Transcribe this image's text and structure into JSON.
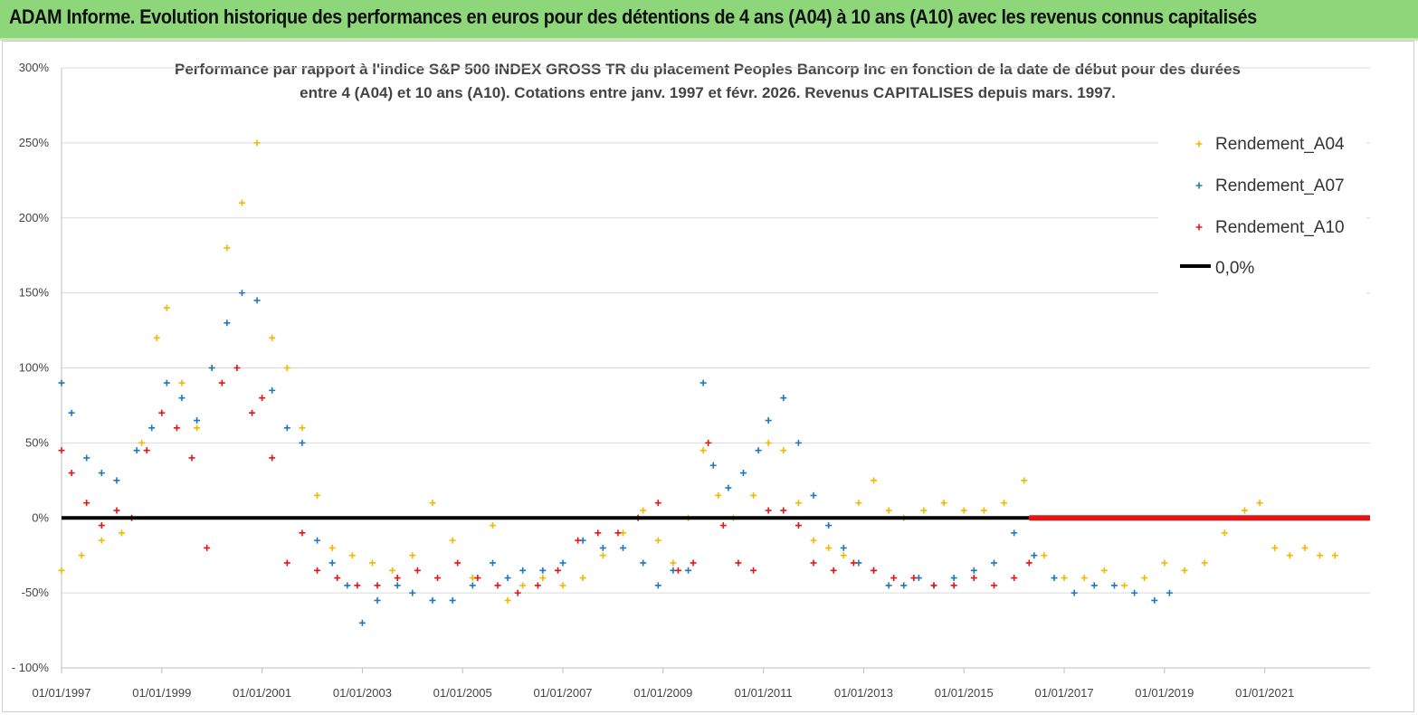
{
  "banner": {
    "title": "ADAM Informe. Evolution historique des performances en euros pour des détentions de 4 ans (A04) à 10 ans (A10) avec les revenus connus capitalisés",
    "background": "#8ed67a"
  },
  "chart_data": {
    "type": "scatter",
    "title_line1": "Performance par rapport à l'indice S&P 500 INDEX GROSS TR  du placement Peoples Bancorp Inc en fonction de la date de début pour des durées",
    "title_line2": "entre 4 (A04) et 10 ans (A10). Cotations entre janv. 1997 et févr. 2026. Revenus CAPITALISES depuis mars. 1997.",
    "x_range": [
      1997.0,
      2023.1
    ],
    "ylim": [
      -100,
      300
    ],
    "y_ticks": [
      300,
      250,
      200,
      150,
      100,
      50,
      0,
      -50,
      -100
    ],
    "y_tick_labels": [
      "300%",
      "250%",
      "200%",
      "150%",
      "100%",
      "50%",
      "0%",
      "-50%",
      "- 100%"
    ],
    "x_ticks": [
      1997,
      1999,
      2001,
      2003,
      2005,
      2007,
      2009,
      2011,
      2013,
      2015,
      2017,
      2019,
      2021
    ],
    "x_tick_labels": [
      "01/01/1997",
      "01/01/1999",
      "01/01/2001",
      "01/01/2003",
      "01/01/2005",
      "01/01/2007",
      "01/01/2009",
      "01/01/2011",
      "01/01/2013",
      "01/01/2015",
      "01/01/2017",
      "01/01/2019",
      "01/01/2021"
    ],
    "legend": [
      "Rendement_A04",
      "Rendement_A07",
      "Rendement_A10",
      "0,0%"
    ],
    "series": [
      {
        "name": "Rendement_A04",
        "color": "#f2b800",
        "x": [
          1997.0,
          1997.4,
          1997.8,
          1998.2,
          1998.6,
          1998.9,
          1999.1,
          1999.4,
          1999.7,
          2000.0,
          2000.3,
          2000.6,
          2000.9,
          2001.2,
          2001.5,
          2001.8,
          2002.1,
          2002.4,
          2002.8,
          2003.2,
          2003.6,
          2004.0,
          2004.4,
          2004.8,
          2005.2,
          2005.6,
          2005.9,
          2006.2,
          2006.6,
          2007.0,
          2007.4,
          2007.8,
          2008.2,
          2008.6,
          2008.9,
          2009.2,
          2009.5,
          2009.8,
          2010.1,
          2010.4,
          2010.8,
          2011.1,
          2011.4,
          2011.7,
          2012.0,
          2012.3,
          2012.6,
          2012.9,
          2013.2,
          2013.5,
          2013.8,
          2014.2,
          2014.6,
          2015.0,
          2015.4,
          2015.8,
          2016.2,
          2016.6,
          2017.0,
          2017.4,
          2017.8,
          2018.2,
          2018.6,
          2019.0,
          2019.4,
          2019.8,
          2020.2,
          2020.6,
          2020.9,
          2021.2,
          2021.5,
          2021.8,
          2022.1,
          2022.4
        ],
        "values": [
          -35,
          -25,
          -15,
          -10,
          50,
          120,
          140,
          90,
          60,
          100,
          180,
          210,
          250,
          120,
          100,
          60,
          15,
          -20,
          -25,
          -30,
          -35,
          -25,
          10,
          -15,
          -40,
          -5,
          -55,
          -45,
          -40,
          -45,
          -40,
          -25,
          -10,
          5,
          -15,
          -30,
          0,
          45,
          15,
          0,
          15,
          50,
          45,
          10,
          -15,
          -20,
          -25,
          10,
          25,
          5,
          0,
          5,
          10,
          5,
          5,
          10,
          25,
          -25,
          -40,
          -40,
          -35,
          -45,
          -40,
          -30,
          -35,
          -30,
          -10,
          5,
          10,
          -20,
          -25,
          -20,
          -25,
          -25
        ]
      },
      {
        "name": "Rendement_A07",
        "color": "#1f77c2",
        "x": [
          1997.0,
          1997.2,
          1997.5,
          1997.8,
          1998.1,
          1998.5,
          1998.8,
          1999.1,
          1999.4,
          1999.7,
          2000.0,
          2000.3,
          2000.6,
          2000.9,
          2001.2,
          2001.5,
          2001.8,
          2002.1,
          2002.4,
          2002.7,
          2003.0,
          2003.3,
          2003.7,
          2004.0,
          2004.4,
          2004.8,
          2005.2,
          2005.6,
          2005.9,
          2006.2,
          2006.6,
          2007.0,
          2007.4,
          2007.8,
          2008.2,
          2008.6,
          2008.9,
          2009.2,
          2009.5,
          2009.8,
          2010.0,
          2010.3,
          2010.6,
          2010.9,
          2011.1,
          2011.4,
          2011.7,
          2012.0,
          2012.3,
          2012.6,
          2012.9,
          2013.2,
          2013.5,
          2013.8,
          2014.1,
          2014.4,
          2014.8,
          2015.2,
          2015.6,
          2016.0,
          2016.4,
          2016.8,
          2017.2,
          2017.6,
          2018.0,
          2018.4,
          2018.8,
          2019.1
        ],
        "values": [
          90,
          70,
          40,
          30,
          25,
          45,
          60,
          90,
          80,
          65,
          100,
          130,
          150,
          145,
          85,
          60,
          50,
          -15,
          -30,
          -45,
          -70,
          -55,
          -45,
          -50,
          -55,
          -55,
          -45,
          -30,
          -40,
          -35,
          -35,
          -30,
          -15,
          -20,
          -20,
          -30,
          -45,
          -35,
          -35,
          90,
          35,
          20,
          30,
          45,
          65,
          80,
          50,
          15,
          -5,
          -20,
          -30,
          -35,
          -45,
          -45,
          -40,
          -45,
          -40,
          -35,
          -30,
          -10,
          -25,
          -40,
          -50,
          -45,
          -45,
          -50,
          -55,
          -50
        ]
      },
      {
        "name": "Rendement_A10",
        "color": "#e81414",
        "x": [
          1997.0,
          1997.2,
          1997.5,
          1997.8,
          1998.1,
          1998.4,
          1998.7,
          1999.0,
          1999.3,
          1999.6,
          1999.9,
          2000.2,
          2000.5,
          2000.8,
          2001.0,
          2001.2,
          2001.5,
          2001.8,
          2002.1,
          2002.5,
          2002.9,
          2003.3,
          2003.7,
          2004.1,
          2004.5,
          2004.9,
          2005.3,
          2005.7,
          2006.1,
          2006.5,
          2006.9,
          2007.3,
          2007.7,
          2008.1,
          2008.5,
          2008.9,
          2009.3,
          2009.6,
          2009.9,
          2010.2,
          2010.5,
          2010.8,
          2011.1,
          2011.4,
          2011.7,
          2012.0,
          2012.4,
          2012.8,
          2013.2,
          2013.6,
          2014.0,
          2014.4,
          2014.8,
          2015.2,
          2015.6,
          2016.0,
          2016.3
        ],
        "values": [
          45,
          30,
          10,
          -5,
          5,
          0,
          45,
          70,
          60,
          40,
          -20,
          90,
          100,
          70,
          80,
          40,
          -30,
          -10,
          -35,
          -40,
          -45,
          -45,
          -40,
          -35,
          -40,
          -30,
          -40,
          -45,
          -50,
          -45,
          -35,
          -15,
          -10,
          -10,
          0,
          10,
          -35,
          -30,
          50,
          -5,
          -30,
          -35,
          5,
          5,
          -5,
          -30,
          -35,
          -30,
          -35,
          -40,
          -40,
          -45,
          -45,
          -40,
          -45,
          -40,
          -30
        ]
      },
      {
        "name": "Rendement_A10 (tail)",
        "color": "#e81414",
        "x": [
          2016.3,
          2023.1
        ],
        "values": [
          0,
          0
        ],
        "dense_line": true
      },
      {
        "name": "0,0%",
        "color": "#000000",
        "x": [
          1997.0,
          2016.3
        ],
        "values": [
          0,
          0
        ],
        "line": true
      }
    ]
  }
}
